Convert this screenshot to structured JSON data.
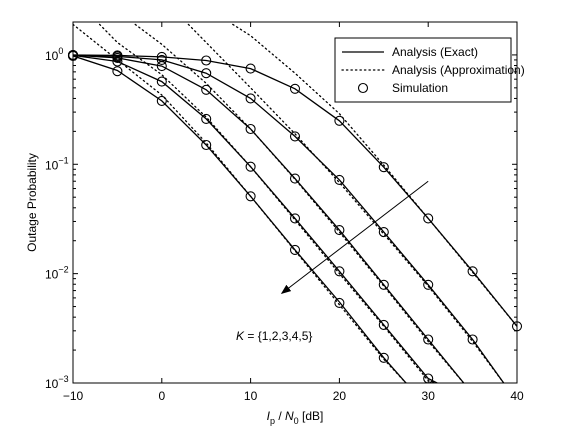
{
  "chart_data": {
    "type": "line",
    "ylabel": "Outage Probability",
    "xlabel": {
      "base": "I",
      "sub1": "p",
      "slash": " / ",
      "base2": "N",
      "sub2": "0",
      "unit": " [dB]"
    },
    "xlim": [
      -10,
      40
    ],
    "ylim": [
      0.001,
      2
    ],
    "yscale": "log",
    "grid": false,
    "xticks": [
      -10,
      0,
      10,
      20,
      30,
      40
    ],
    "xtick_labels": [
      "−10",
      "0",
      "10",
      "20",
      "30",
      "40"
    ],
    "yticks": [
      {
        "value": 1,
        "mantissa": "10",
        "exp": "0"
      },
      {
        "value": 0.1,
        "mantissa": "10",
        "exp": "−1"
      },
      {
        "value": 0.01,
        "mantissa": "10",
        "exp": "−2"
      },
      {
        "value": 0.001,
        "mantissa": "10",
        "exp": "−3"
      }
    ],
    "legend": {
      "position": "top-right",
      "entries": [
        {
          "label": "Analysis (Exact)",
          "style": "solid"
        },
        {
          "label": "Analysis (Approximation)",
          "style": "dotted"
        },
        {
          "label": "Simulation",
          "style": "marker"
        }
      ]
    },
    "annotation": {
      "text_italic": "K",
      "text_rest": " = {1,2,3,4,5}",
      "arrow_from": [
        30,
        0.07
      ],
      "arrow_to": [
        13.5,
        0.0066
      ]
    },
    "series": [
      {
        "exact": [
          [
            -10,
            0.98
          ],
          [
            -5,
            0.72
          ],
          [
            0,
            0.38
          ],
          [
            5,
            0.15
          ],
          [
            10,
            0.051
          ],
          [
            15,
            0.0165
          ],
          [
            20,
            0.0055
          ],
          [
            25,
            0.0017
          ],
          [
            27.5,
            0.001
          ]
        ],
        "approx": [
          [
            -10,
            1.9
          ],
          [
            -5,
            0.9
          ],
          [
            0,
            0.43
          ],
          [
            5,
            0.157
          ],
          [
            10,
            0.051
          ],
          [
            15,
            0.0162
          ],
          [
            20,
            0.0052
          ],
          [
            25,
            0.00165
          ],
          [
            27.5,
            0.001
          ]
        ],
        "sim": [
          [
            -10,
            0.98
          ],
          [
            -5,
            0.71
          ],
          [
            0,
            0.38
          ],
          [
            5,
            0.15
          ],
          [
            10,
            0.051
          ],
          [
            15,
            0.0165
          ],
          [
            20,
            0.0054
          ],
          [
            25,
            0.0017
          ]
        ]
      },
      {
        "exact": [
          [
            -10,
            0.99
          ],
          [
            -5,
            0.87
          ],
          [
            0,
            0.57
          ],
          [
            5,
            0.26
          ],
          [
            10,
            0.095
          ],
          [
            15,
            0.032
          ],
          [
            20,
            0.0105
          ],
          [
            25,
            0.0034
          ],
          [
            30,
            0.0011
          ],
          [
            31,
            0.001
          ]
        ],
        "approx": [
          [
            -7,
            1.9
          ],
          [
            -5,
            1.3
          ],
          [
            0,
            0.66
          ],
          [
            5,
            0.27
          ],
          [
            10,
            0.095
          ],
          [
            15,
            0.031
          ],
          [
            20,
            0.01
          ],
          [
            25,
            0.0033
          ],
          [
            30,
            0.00105
          ],
          [
            31,
            0.001
          ]
        ],
        "sim": [
          [
            -10,
            0.99
          ],
          [
            -5,
            0.87
          ],
          [
            0,
            0.57
          ],
          [
            5,
            0.26
          ],
          [
            10,
            0.095
          ],
          [
            15,
            0.032
          ],
          [
            20,
            0.0105
          ],
          [
            25,
            0.0034
          ],
          [
            30,
            0.0011
          ]
        ]
      },
      {
        "exact": [
          [
            -10,
            0.995
          ],
          [
            -5,
            0.94
          ],
          [
            0,
            0.79
          ],
          [
            5,
            0.48
          ],
          [
            10,
            0.21
          ],
          [
            15,
            0.074
          ],
          [
            20,
            0.025
          ],
          [
            25,
            0.0079
          ],
          [
            30,
            0.0025
          ],
          [
            34,
            0.001
          ]
        ],
        "approx": [
          [
            -3,
            1.9
          ],
          [
            0,
            1.25
          ],
          [
            5,
            0.55
          ],
          [
            10,
            0.21
          ],
          [
            15,
            0.073
          ],
          [
            20,
            0.024
          ],
          [
            25,
            0.0077
          ],
          [
            30,
            0.0024
          ],
          [
            34,
            0.001
          ]
        ],
        "sim": [
          [
            -10,
            0.995
          ],
          [
            -5,
            0.94
          ],
          [
            0,
            0.79
          ],
          [
            5,
            0.48
          ],
          [
            10,
            0.21
          ],
          [
            15,
            0.074
          ],
          [
            20,
            0.025
          ],
          [
            25,
            0.0079
          ],
          [
            30,
            0.0025
          ],
          [
            35,
            0.0008
          ]
        ]
      },
      {
        "exact": [
          [
            -10,
            0.997
          ],
          [
            -5,
            0.97
          ],
          [
            0,
            0.9
          ],
          [
            5,
            0.68
          ],
          [
            10,
            0.4
          ],
          [
            15,
            0.18
          ],
          [
            20,
            0.072
          ],
          [
            25,
            0.024
          ],
          [
            30,
            0.0079
          ],
          [
            35,
            0.0025
          ],
          [
            38.5,
            0.001
          ]
        ],
        "approx": [
          [
            3,
            1.9
          ],
          [
            5,
            1.3
          ],
          [
            10,
            0.5
          ],
          [
            15,
            0.19
          ],
          [
            20,
            0.068
          ],
          [
            25,
            0.023
          ],
          [
            30,
            0.0077
          ],
          [
            35,
            0.0024
          ],
          [
            38.5,
            0.001
          ]
        ],
        "sim": [
          [
            -10,
            0.997
          ],
          [
            -5,
            0.97
          ],
          [
            0,
            0.9
          ],
          [
            5,
            0.68
          ],
          [
            10,
            0.4
          ],
          [
            15,
            0.18
          ],
          [
            20,
            0.072
          ],
          [
            25,
            0.024
          ],
          [
            30,
            0.0079
          ],
          [
            35,
            0.0025
          ]
        ]
      },
      {
        "exact": [
          [
            -10,
            0.998
          ],
          [
            -5,
            0.99
          ],
          [
            0,
            0.96
          ],
          [
            5,
            0.89
          ],
          [
            10,
            0.75
          ],
          [
            15,
            0.49
          ],
          [
            20,
            0.25
          ],
          [
            25,
            0.094
          ],
          [
            30,
            0.032
          ],
          [
            35,
            0.0105
          ],
          [
            40,
            0.0033
          ]
        ],
        "approx": [
          [
            8,
            1.9
          ],
          [
            10,
            1.5
          ],
          [
            15,
            0.68
          ],
          [
            20,
            0.29
          ],
          [
            25,
            0.098
          ],
          [
            30,
            0.032
          ],
          [
            35,
            0.0103
          ],
          [
            40,
            0.0033
          ]
        ],
        "sim": [
          [
            -10,
            0.998
          ],
          [
            -5,
            0.99
          ],
          [
            0,
            0.96
          ],
          [
            5,
            0.89
          ],
          [
            10,
            0.75
          ],
          [
            15,
            0.49
          ],
          [
            20,
            0.25
          ],
          [
            25,
            0.094
          ],
          [
            30,
            0.032
          ],
          [
            35,
            0.0105
          ],
          [
            40,
            0.0033
          ]
        ]
      }
    ]
  }
}
